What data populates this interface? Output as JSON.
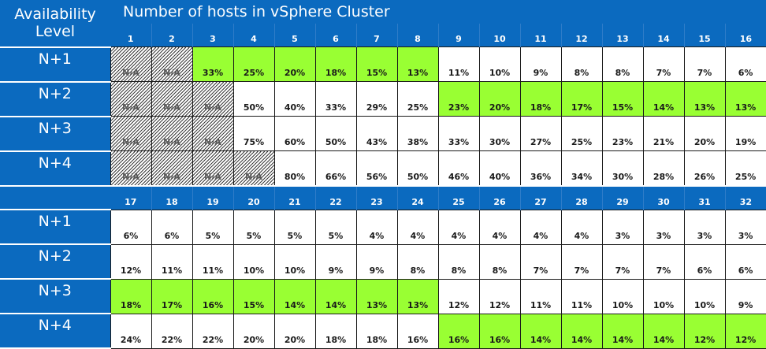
{
  "header": {
    "level_title": "Availability Level",
    "cluster_title": "Number of hosts in vSphere Cluster"
  },
  "colors": {
    "header_blue": "#0b6abf",
    "highlight_green": "#99ff33",
    "na_hatch": "#3c3c3c"
  },
  "sections": [
    {
      "hosts": [
        "1",
        "2",
        "3",
        "4",
        "5",
        "6",
        "7",
        "8",
        "9",
        "10",
        "11",
        "12",
        "13",
        "14",
        "15",
        "16"
      ],
      "rows": [
        {
          "level": "N+1",
          "values": [
            "N/A",
            "N/A",
            "33%",
            "25%",
            "20%",
            "18%",
            "15%",
            "13%",
            "11%",
            "10%",
            "9%",
            "8%",
            "8%",
            "7%",
            "7%",
            "6%"
          ],
          "status": [
            "na",
            "na",
            "green",
            "green",
            "green",
            "green",
            "green",
            "green",
            "",
            "",
            "",
            "",
            "",
            "",
            "",
            ""
          ]
        },
        {
          "level": "N+2",
          "values": [
            "N/A",
            "N/A",
            "N/A",
            "50%",
            "40%",
            "33%",
            "29%",
            "25%",
            "23%",
            "20%",
            "18%",
            "17%",
            "15%",
            "14%",
            "13%",
            "13%"
          ],
          "status": [
            "na",
            "na",
            "na",
            "",
            "",
            "",
            "",
            "",
            "green",
            "green",
            "green",
            "green",
            "green",
            "green",
            "green",
            "green"
          ]
        },
        {
          "level": "N+3",
          "values": [
            "N/A",
            "N/A",
            "N/A",
            "75%",
            "60%",
            "50%",
            "43%",
            "38%",
            "33%",
            "30%",
            "27%",
            "25%",
            "23%",
            "21%",
            "20%",
            "19%"
          ],
          "status": [
            "na",
            "na",
            "na",
            "",
            "",
            "",
            "",
            "",
            "",
            "",
            "",
            "",
            "",
            "",
            "",
            ""
          ]
        },
        {
          "level": "N+4",
          "values": [
            "N/A",
            "N/A",
            "N/A",
            "N/A",
            "80%",
            "66%",
            "56%",
            "50%",
            "46%",
            "40%",
            "36%",
            "34%",
            "30%",
            "28%",
            "26%",
            "25%"
          ],
          "status": [
            "na",
            "na",
            "na",
            "na",
            "",
            "",
            "",
            "",
            "",
            "",
            "",
            "",
            "",
            "",
            "",
            ""
          ]
        }
      ]
    },
    {
      "hosts": [
        "17",
        "18",
        "19",
        "20",
        "21",
        "22",
        "23",
        "24",
        "25",
        "26",
        "27",
        "28",
        "29",
        "30",
        "31",
        "32"
      ],
      "rows": [
        {
          "level": "N+1",
          "values": [
            "6%",
            "6%",
            "5%",
            "5%",
            "5%",
            "5%",
            "4%",
            "4%",
            "4%",
            "4%",
            "4%",
            "4%",
            "3%",
            "3%",
            "3%",
            "3%"
          ],
          "status": [
            "",
            "",
            "",
            "",
            "",
            "",
            "",
            "",
            "",
            "",
            "",
            "",
            "",
            "",
            "",
            ""
          ]
        },
        {
          "level": "N+2",
          "values": [
            "12%",
            "11%",
            "11%",
            "10%",
            "10%",
            "9%",
            "9%",
            "8%",
            "8%",
            "8%",
            "7%",
            "7%",
            "7%",
            "7%",
            "6%",
            "6%"
          ],
          "status": [
            "",
            "",
            "",
            "",
            "",
            "",
            "",
            "",
            "",
            "",
            "",
            "",
            "",
            "",
            "",
            ""
          ]
        },
        {
          "level": "N+3",
          "values": [
            "18%",
            "17%",
            "16%",
            "15%",
            "14%",
            "14%",
            "13%",
            "13%",
            "12%",
            "12%",
            "11%",
            "11%",
            "10%",
            "10%",
            "10%",
            "9%"
          ],
          "status": [
            "green",
            "green",
            "green",
            "green",
            "green",
            "green",
            "green",
            "green",
            "",
            "",
            "",
            "",
            "",
            "",
            "",
            ""
          ]
        },
        {
          "level": "N+4",
          "values": [
            "24%",
            "22%",
            "22%",
            "20%",
            "20%",
            "18%",
            "18%",
            "16%",
            "16%",
            "16%",
            "14%",
            "14%",
            "14%",
            "14%",
            "12%",
            "12%"
          ],
          "status": [
            "",
            "",
            "",
            "",
            "",
            "",
            "",
            "",
            "green",
            "green",
            "green",
            "green",
            "green",
            "green",
            "green",
            "green"
          ]
        }
      ]
    }
  ]
}
